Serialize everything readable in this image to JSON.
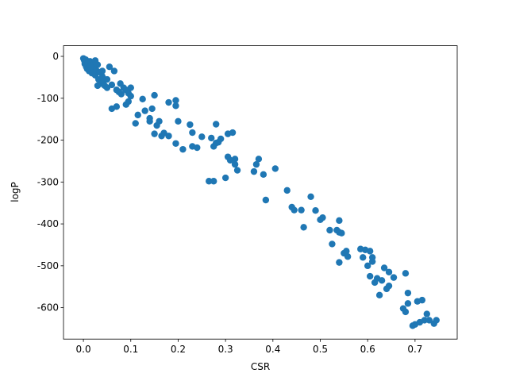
{
  "chart_data": {
    "type": "scatter",
    "xlabel": "CSR",
    "ylabel": "logP",
    "color": "#1f77b4",
    "x": [
      0,
      0.002,
      0.003,
      0.005,
      0.006,
      0.008,
      0.01,
      0.012,
      0.014,
      0.015,
      0.018,
      0.02,
      0.022,
      0.025,
      0.027,
      0.03,
      0.032,
      0.035,
      0.037,
      0.04,
      0.042,
      0.045,
      0.05,
      0.055,
      0.06,
      0.065,
      0.07,
      0.075,
      0.078,
      0.08,
      0.085,
      0.09,
      0.095,
      0.1,
      0.1,
      0.06,
      0.07,
      0.09,
      0.095,
      0.01,
      0.015,
      0.025,
      0.05,
      0.04,
      0.03,
      0.11,
      0.115,
      0.125,
      0.13,
      0.14,
      0.14,
      0.145,
      0.15,
      0.15,
      0.155,
      0.16,
      0.165,
      0.17,
      0.18,
      0.18,
      0.195,
      0.195,
      0.195,
      0.2,
      0.21,
      0.225,
      0.23,
      0.23,
      0.24,
      0.25,
      0.265,
      0.27,
      0.275,
      0.275,
      0.28,
      0.28,
      0.285,
      0.29,
      0.3,
      0.305,
      0.305,
      0.31,
      0.315,
      0.32,
      0.32,
      0.325,
      0.36,
      0.365,
      0.37,
      0.38,
      0.385,
      0.405,
      0.43,
      0.44,
      0.445,
      0.46,
      0.465,
      0.48,
      0.49,
      0.5,
      0.505,
      0.52,
      0.525,
      0.535,
      0.54,
      0.54,
      0.54,
      0.545,
      0.55,
      0.555,
      0.558,
      0.585,
      0.59,
      0.595,
      0.6,
      0.605,
      0.605,
      0.61,
      0.61,
      0.615,
      0.62,
      0.625,
      0.63,
      0.635,
      0.64,
      0.645,
      0.645,
      0.655,
      0.675,
      0.68,
      0.68,
      0.685,
      0.685,
      0.695,
      0.7,
      0.705,
      0.71,
      0.715,
      0.72,
      0.725,
      0.73,
      0.74,
      0.745
    ],
    "values": [
      -5,
      -10,
      -18,
      -8,
      -25,
      -30,
      -15,
      -35,
      -12,
      -22,
      -40,
      -28,
      -18,
      -45,
      -33,
      -20,
      -55,
      -38,
      -65,
      -48,
      -60,
      -70,
      -75,
      -25,
      -68,
      -35,
      -80,
      -85,
      -65,
      -90,
      -75,
      -80,
      -88,
      -75,
      -95,
      -125,
      -120,
      -115,
      -108,
      -30,
      -25,
      -10,
      -55,
      -35,
      -70,
      -160,
      -140,
      -102,
      -130,
      -148,
      -155,
      -125,
      -185,
      -93,
      -165,
      -155,
      -190,
      -183,
      -110,
      -190,
      -105,
      -118,
      -208,
      -155,
      -222,
      -163,
      -182,
      -215,
      -218,
      -192,
      -298,
      -195,
      -215,
      -298,
      -162,
      -207,
      -205,
      -197,
      -290,
      -240,
      -185,
      -248,
      -182,
      -245,
      -258,
      -272,
      -275,
      -258,
      -245,
      -282,
      -343,
      -268,
      -320,
      -360,
      -367,
      -367,
      -408,
      -335,
      -368,
      -390,
      -385,
      -415,
      -448,
      -415,
      -392,
      -420,
      -492,
      -422,
      -470,
      -465,
      -478,
      -460,
      -480,
      -462,
      -500,
      -465,
      -525,
      -490,
      -480,
      -540,
      -530,
      -570,
      -535,
      -505,
      -555,
      -515,
      -548,
      -528,
      -602,
      -610,
      -518,
      -565,
      -590,
      -643,
      -640,
      -585,
      -635,
      -582,
      -630,
      -615,
      -630,
      -638,
      -630
    ],
    "xlim": [
      -0.042,
      0.789
    ],
    "ylim": [
      -675,
      25.4
    ],
    "xticks": [
      {
        "value": 0,
        "label": "0.0"
      },
      0.1,
      0.2,
      0.3,
      0.4,
      0.5,
      0.6,
      0.7
    ],
    "yticks": [
      0,
      -100,
      -200,
      -300,
      -400,
      -500,
      -600
    ]
  }
}
